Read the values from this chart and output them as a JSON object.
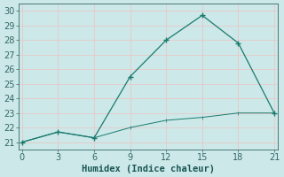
{
  "x": [
    0,
    3,
    6,
    9,
    12,
    15,
    18,
    21
  ],
  "y_main": [
    21,
    21.7,
    21.3,
    25.5,
    28,
    29.7,
    27.8,
    23
  ],
  "y_base": [
    21,
    21.7,
    21.3,
    22.0,
    22.5,
    22.7,
    23.0,
    23.0
  ],
  "xlim": [
    -0.3,
    21.3
  ],
  "ylim": [
    20.5,
    30.5
  ],
  "yticks": [
    21,
    22,
    23,
    24,
    25,
    26,
    27,
    28,
    29,
    30
  ],
  "xticks": [
    0,
    3,
    6,
    9,
    12,
    15,
    18,
    21
  ],
  "xlabel": "Humidex (Indice chaleur)",
  "line_color": "#1a7a6e",
  "bg_color": "#cce8e8",
  "grid_color": "#e8c8c8",
  "tick_fontsize": 7,
  "label_fontsize": 7.5
}
